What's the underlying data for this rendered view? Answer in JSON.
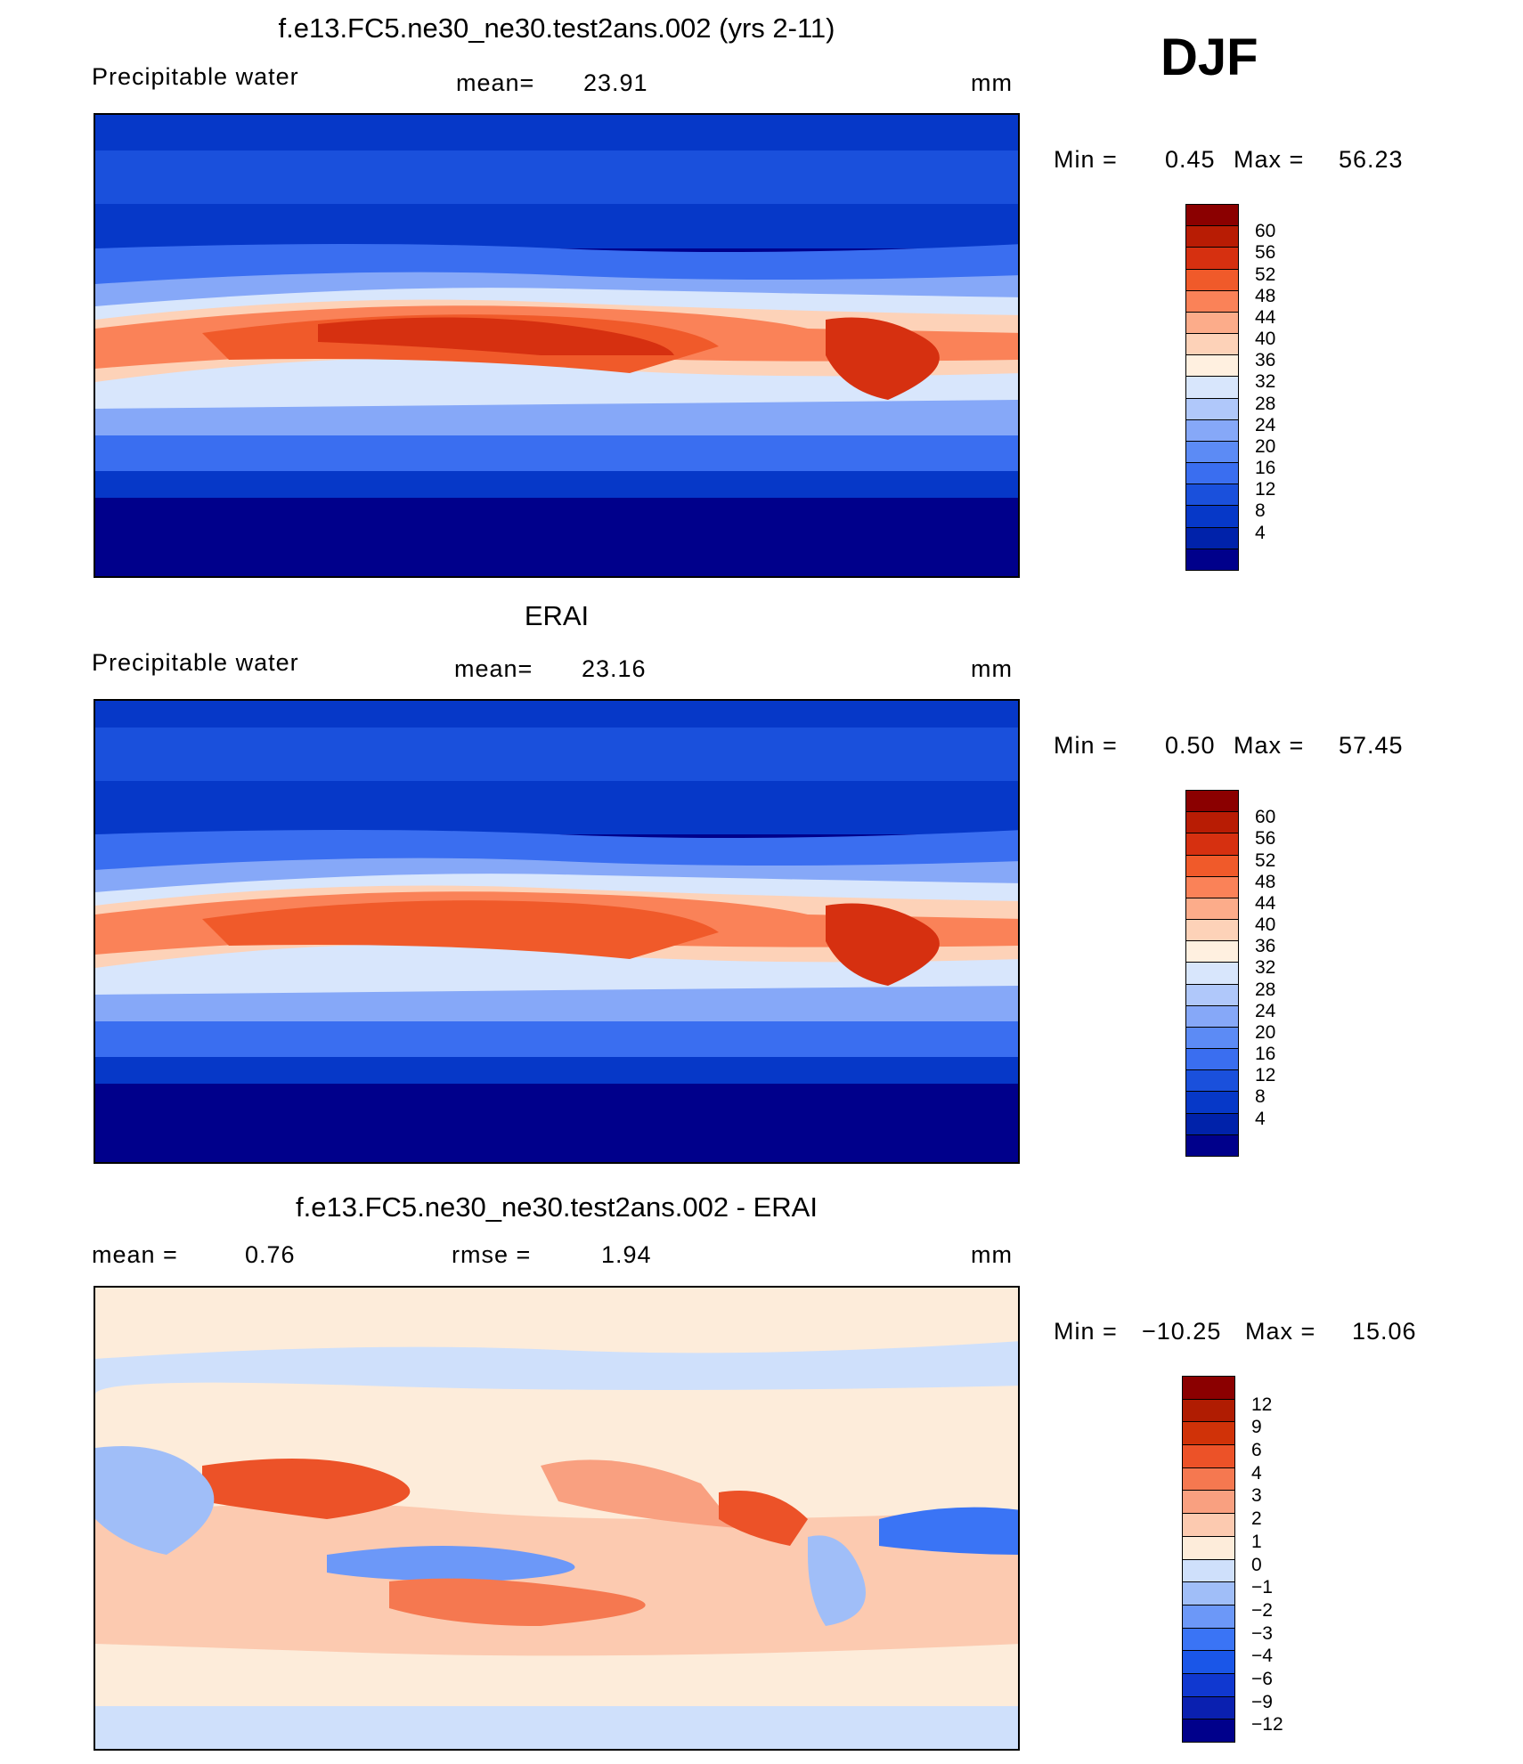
{
  "season": "DJF",
  "units": "mm",
  "palettes": {
    "pw": [
      "#00008b",
      "#0022aa",
      "#0638c8",
      "#1a50dc",
      "#3a6ef0",
      "#5c8bf5",
      "#86a8f8",
      "#b0c8fa",
      "#d8e6fc",
      "#fff0e0",
      "#fdd2b8",
      "#fcac8a",
      "#fa8258",
      "#f05a2a",
      "#d63010",
      "#b81c04",
      "#8b0000"
    ],
    "diff": [
      "#00008b",
      "#0a20b0",
      "#1038d0",
      "#1a56e8",
      "#3a74f5",
      "#6c98f8",
      "#a0bef8",
      "#cfe0fb",
      "#fdecda",
      "#fccab0",
      "#f9a080",
      "#f57850",
      "#ec5228",
      "#d03208",
      "#b01c02",
      "#8b0000"
    ]
  },
  "chart_data": [
    {
      "type": "heatmap",
      "title": "f.e13.FC5.ne30_ne30.test2ans.002 (yrs 2-11)",
      "variable": "Precipitable water",
      "stat_left_label": "",
      "stat_mid_label": "mean=",
      "stat_mid_value": "23.91",
      "min_label": "Min =",
      "min": "0.45",
      "max_label": "Max =",
      "max": "56.23",
      "levels": [
        "60",
        "56",
        "52",
        "48",
        "44",
        "40",
        "36",
        "32",
        "28",
        "24",
        "20",
        "16",
        "12",
        "8",
        "4"
      ],
      "palette": "pw",
      "grid": false,
      "legend": "right"
    },
    {
      "type": "heatmap",
      "title": "ERAI",
      "variable": "Precipitable water",
      "stat_mid_label": "mean=",
      "stat_mid_value": "23.16",
      "min_label": "Min =",
      "min": "0.50",
      "max_label": "Max =",
      "max": "57.45",
      "levels": [
        "60",
        "56",
        "52",
        "48",
        "44",
        "40",
        "36",
        "32",
        "28",
        "24",
        "20",
        "16",
        "12",
        "8",
        "4"
      ],
      "palette": "pw",
      "grid": false,
      "legend": "right"
    },
    {
      "type": "heatmap",
      "title": "f.e13.FC5.ne30_ne30.test2ans.002 - ERAI",
      "stat_left_label": "mean =",
      "stat_left_value": "0.76",
      "stat_mid_label": "rmse =",
      "stat_mid_value": "1.94",
      "min_label": "Min =",
      "min": "−10.25",
      "max_label": "Max =",
      "max": "15.06",
      "levels": [
        "12",
        "9",
        "6",
        "4",
        "3",
        "2",
        "1",
        "0",
        "−1",
        "−2",
        "−3",
        "−4",
        "−6",
        "−9",
        "−12"
      ],
      "palette": "diff",
      "grid": false,
      "legend": "right"
    }
  ]
}
